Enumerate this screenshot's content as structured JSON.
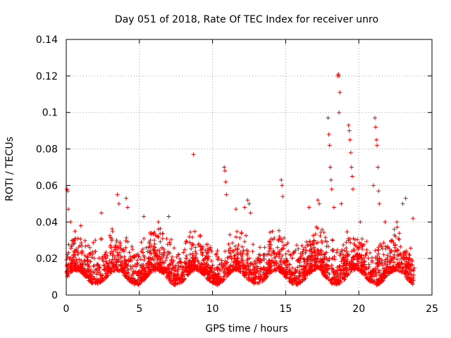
{
  "chart_data": {
    "type": "scatter",
    "title": "Day 051 of 2018, Rate Of TEC Index for receiver unro",
    "xlabel": "GPS time / hours",
    "ylabel": "ROTI / TECUs",
    "xlim": [
      0,
      25
    ],
    "ylim": [
      0,
      0.14
    ],
    "xticks": [
      "0",
      "5",
      "10",
      "15",
      "20",
      "25"
    ],
    "xtick_values": [
      0,
      5,
      10,
      15,
      20,
      25
    ],
    "yticks": [
      "0",
      "0.02",
      "0.04",
      "0.06",
      "0.08",
      "0.1",
      "0.12",
      "0.14"
    ],
    "ytick_values": [
      0,
      0.02,
      0.04,
      0.06,
      0.08,
      0.1,
      0.12,
      0.14
    ],
    "grid": true,
    "marker": "+",
    "color": "#ff0000",
    "series": [
      {
        "name": "ROTI",
        "baseline_range": [
          0.005,
          0.035
        ],
        "x_range": [
          0,
          23.8
        ],
        "outliers": [
          [
            0.05,
            0.058
          ],
          [
            0.1,
            0.057
          ],
          [
            0.15,
            0.047
          ],
          [
            0.3,
            0.04
          ],
          [
            0.6,
            0.035
          ],
          [
            1.0,
            0.038
          ],
          [
            2.4,
            0.045
          ],
          [
            3.5,
            0.055
          ],
          [
            3.6,
            0.05
          ],
          [
            4.1,
            0.053
          ],
          [
            4.2,
            0.048
          ],
          [
            5.3,
            0.043
          ],
          [
            6.3,
            0.04
          ],
          [
            7.0,
            0.043
          ],
          [
            8.7,
            0.077
          ],
          [
            10.8,
            0.07
          ],
          [
            10.85,
            0.068
          ],
          [
            10.9,
            0.062
          ],
          [
            10.95,
            0.055
          ],
          [
            11.6,
            0.047
          ],
          [
            12.2,
            0.048
          ],
          [
            12.4,
            0.052
          ],
          [
            12.5,
            0.05
          ],
          [
            12.6,
            0.045
          ],
          [
            14.7,
            0.063
          ],
          [
            14.75,
            0.06
          ],
          [
            14.8,
            0.054
          ],
          [
            16.6,
            0.048
          ],
          [
            17.2,
            0.052
          ],
          [
            17.3,
            0.05
          ],
          [
            17.9,
            0.097
          ],
          [
            17.95,
            0.088
          ],
          [
            18.0,
            0.082
          ],
          [
            18.05,
            0.07
          ],
          [
            18.1,
            0.063
          ],
          [
            18.15,
            0.058
          ],
          [
            18.3,
            0.048
          ],
          [
            18.55,
            0.12
          ],
          [
            18.6,
            0.121
          ],
          [
            18.65,
            0.12
          ],
          [
            18.7,
            0.111
          ],
          [
            18.65,
            0.1
          ],
          [
            18.8,
            0.05
          ],
          [
            19.3,
            0.093
          ],
          [
            19.35,
            0.09
          ],
          [
            19.4,
            0.085
          ],
          [
            19.45,
            0.078
          ],
          [
            19.5,
            0.07
          ],
          [
            19.55,
            0.065
          ],
          [
            19.6,
            0.058
          ],
          [
            20.1,
            0.04
          ],
          [
            21.0,
            0.06
          ],
          [
            21.1,
            0.097
          ],
          [
            21.15,
            0.092
          ],
          [
            21.2,
            0.085
          ],
          [
            21.25,
            0.082
          ],
          [
            21.3,
            0.07
          ],
          [
            21.35,
            0.057
          ],
          [
            21.4,
            0.05
          ],
          [
            21.8,
            0.04
          ],
          [
            22.6,
            0.04
          ],
          [
            23.0,
            0.05
          ],
          [
            23.2,
            0.053
          ],
          [
            23.7,
            0.042
          ]
        ]
      }
    ]
  }
}
